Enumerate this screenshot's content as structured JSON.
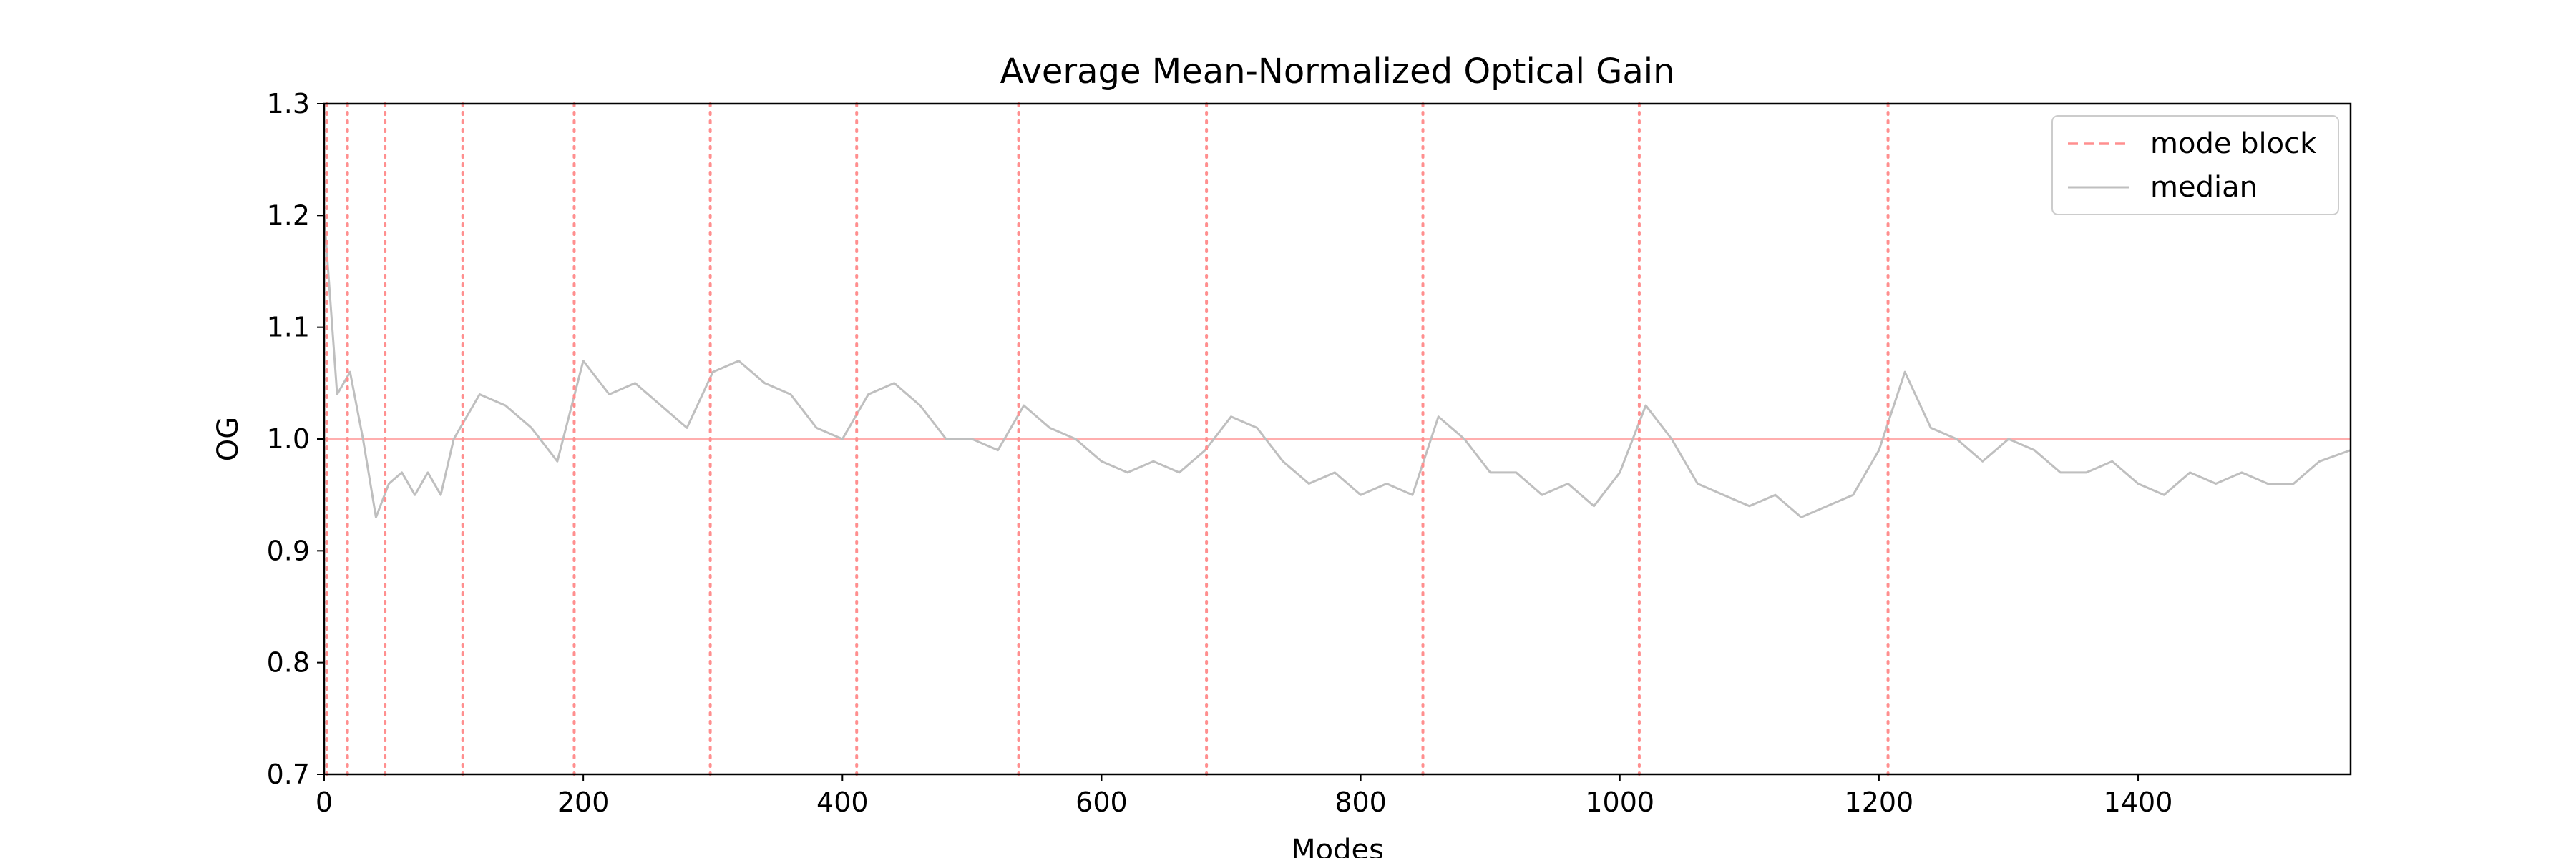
{
  "chart_data": {
    "type": "line",
    "title": "Average Mean-Normalized Optical Gain",
    "xlabel": "Modes",
    "ylabel": "OG",
    "xlim": [
      0,
      1564
    ],
    "ylim": [
      0.7,
      1.3
    ],
    "xticks": [
      0,
      200,
      400,
      600,
      800,
      1000,
      1200,
      1400
    ],
    "yticks": [
      0.7,
      0.8,
      0.9,
      1.0,
      1.1,
      1.2,
      1.3
    ],
    "xtick_labels": [
      "0",
      "200",
      "400",
      "600",
      "800",
      "1000",
      "1200",
      "1400"
    ],
    "ytick_labels": [
      "0.7",
      "0.8",
      "0.9",
      "1.0",
      "1.1",
      "1.2",
      "1.3"
    ],
    "grid": false,
    "legend_position": "top-right",
    "reference_line": {
      "y": 1.0,
      "color": "#ff9a9a"
    },
    "mode_blocks": {
      "name": "mode block",
      "color": "#ff8f8f",
      "style": "dotted",
      "x": [
        2,
        18,
        47,
        107,
        193,
        298,
        411,
        536,
        681,
        848,
        1015,
        1207
      ]
    },
    "series": [
      {
        "name": "median",
        "color": "#bfbfbf",
        "x": [
          0,
          10,
          20,
          30,
          40,
          50,
          60,
          70,
          80,
          90,
          100,
          120,
          140,
          160,
          180,
          200,
          220,
          240,
          260,
          280,
          300,
          320,
          340,
          360,
          380,
          400,
          420,
          440,
          460,
          480,
          500,
          520,
          540,
          560,
          580,
          600,
          620,
          640,
          660,
          680,
          700,
          720,
          740,
          760,
          780,
          800,
          820,
          840,
          860,
          880,
          900,
          920,
          940,
          960,
          980,
          1000,
          1020,
          1040,
          1060,
          1080,
          1100,
          1120,
          1140,
          1160,
          1180,
          1200,
          1220,
          1240,
          1260,
          1280,
          1300,
          1320,
          1340,
          1360,
          1380,
          1400,
          1420,
          1440,
          1460,
          1480,
          1500,
          1520,
          1540,
          1564
        ],
        "values": [
          1.2,
          1.04,
          1.06,
          1.0,
          0.93,
          0.96,
          0.97,
          0.95,
          0.97,
          0.95,
          1.0,
          1.04,
          1.03,
          1.01,
          0.98,
          1.07,
          1.04,
          1.05,
          1.03,
          1.01,
          1.06,
          1.07,
          1.05,
          1.04,
          1.01,
          1.0,
          1.04,
          1.05,
          1.03,
          1.0,
          1.0,
          0.99,
          1.03,
          1.01,
          1.0,
          0.98,
          0.97,
          0.98,
          0.97,
          0.99,
          1.02,
          1.01,
          0.98,
          0.96,
          0.97,
          0.95,
          0.96,
          0.95,
          1.02,
          1.0,
          0.97,
          0.97,
          0.95,
          0.96,
          0.94,
          0.97,
          1.03,
          1.0,
          0.96,
          0.95,
          0.94,
          0.95,
          0.93,
          0.94,
          0.95,
          0.99,
          1.06,
          1.01,
          1.0,
          0.98,
          1.0,
          0.99,
          0.97,
          0.97,
          0.98,
          0.96,
          0.95,
          0.97,
          0.96,
          0.97,
          0.96,
          0.96,
          0.98,
          0.99
        ]
      }
    ]
  }
}
